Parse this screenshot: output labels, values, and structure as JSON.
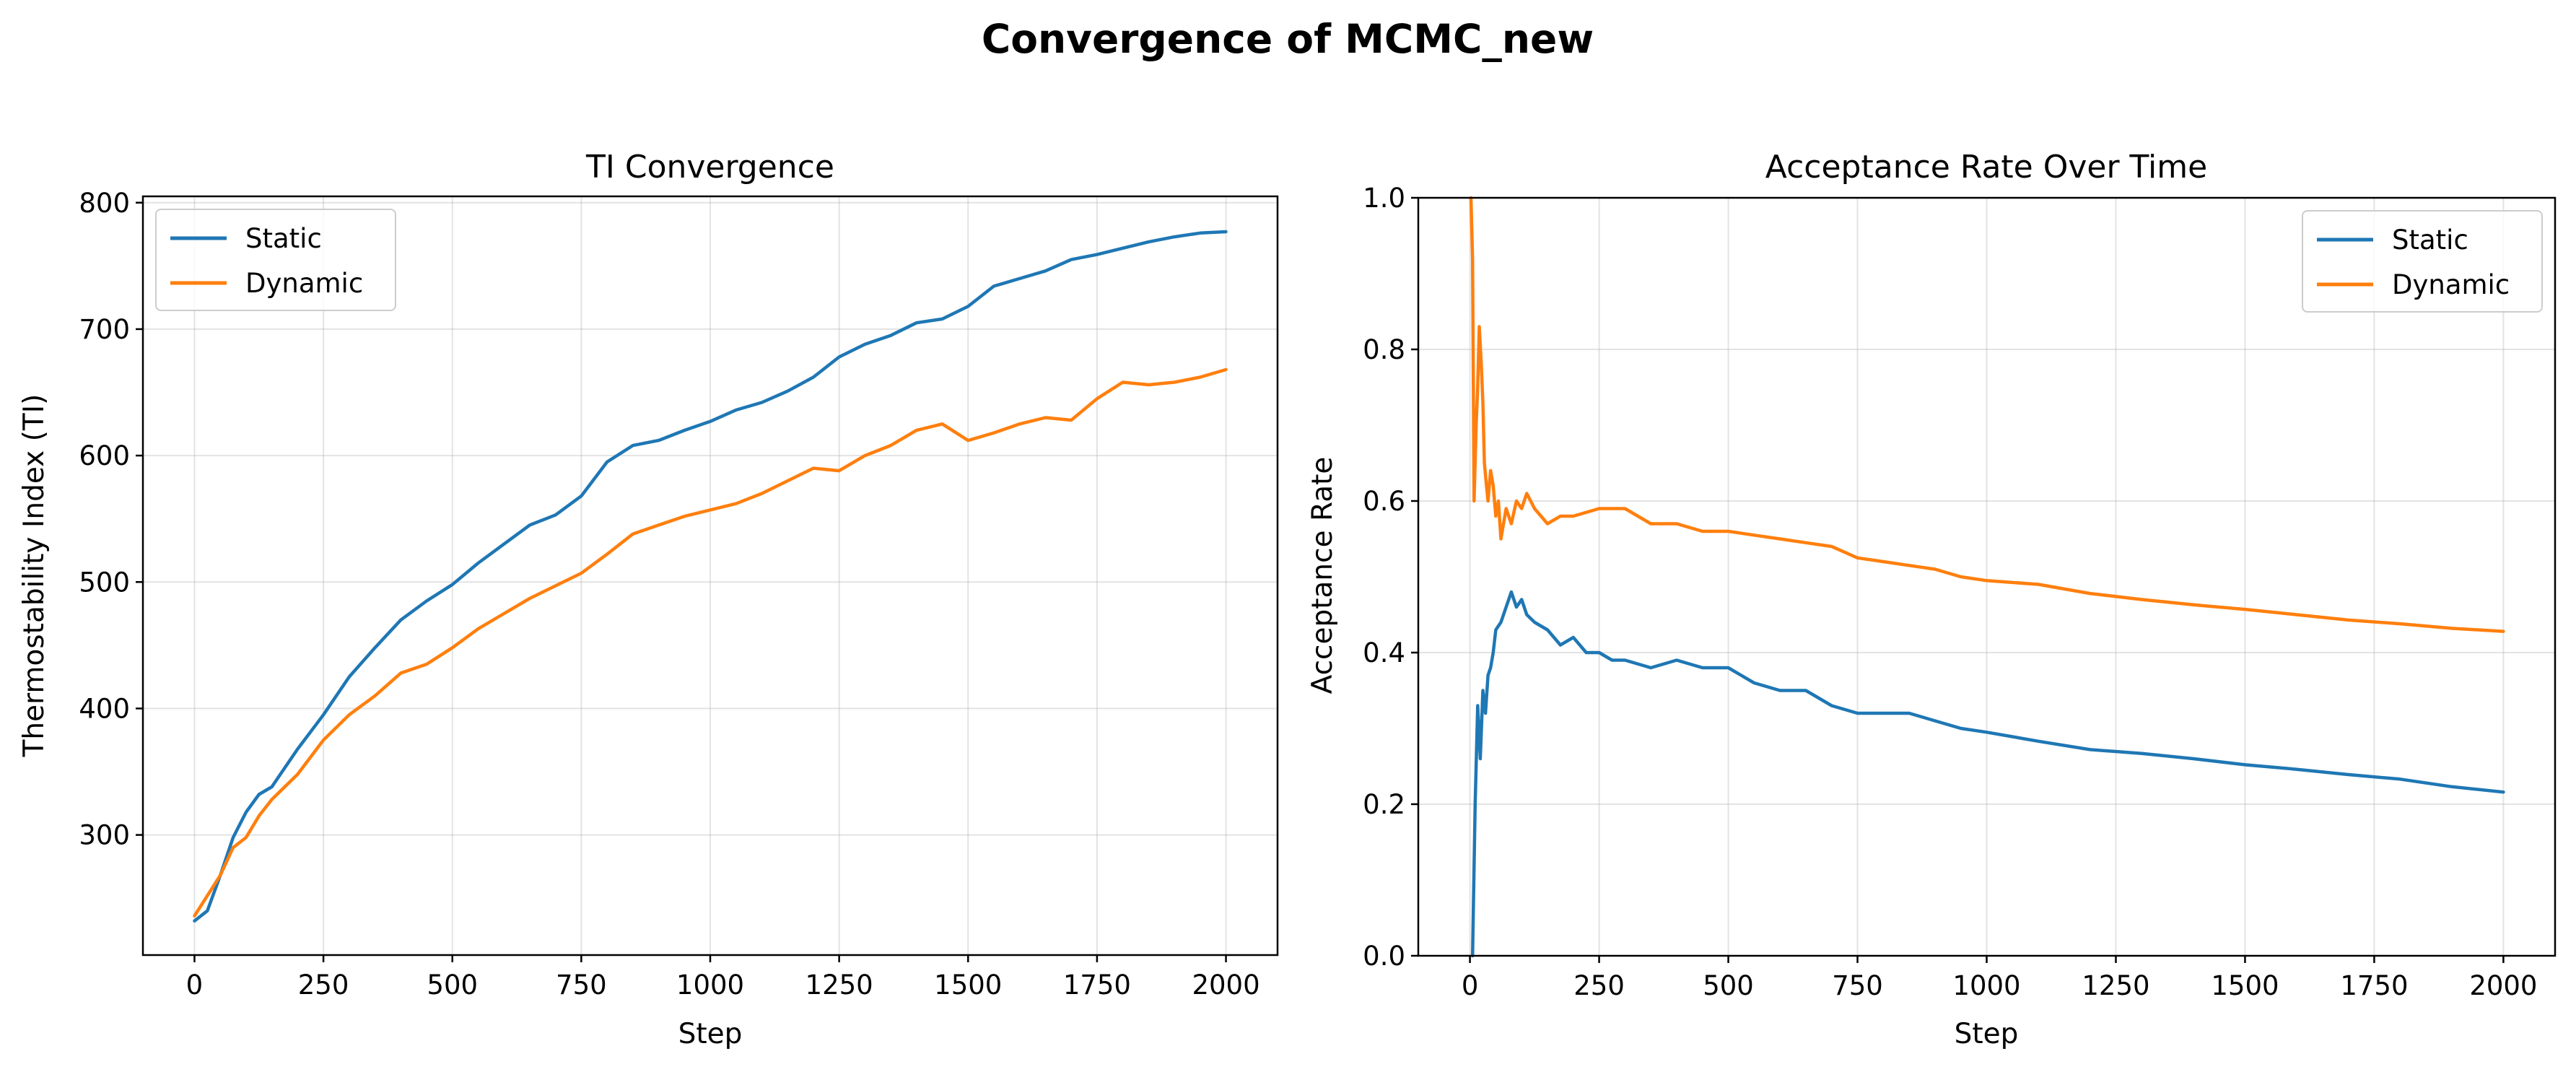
{
  "figure": {
    "title": "Convergence of MCMC_new"
  },
  "colors": {
    "static": "#1f77b4",
    "dynamic": "#ff7f0e"
  },
  "chart_data": [
    {
      "type": "line",
      "title": "TI Convergence",
      "xlabel": "Step",
      "ylabel": "Thermostability Index (TI)",
      "xlim": [
        -100,
        2100
      ],
      "ylim": [
        205,
        805
      ],
      "xticks": [
        0,
        250,
        500,
        750,
        1000,
        1250,
        1500,
        1750,
        2000
      ],
      "yticks": [
        300,
        400,
        500,
        600,
        700,
        800
      ],
      "grid": true,
      "legend": "top-left",
      "series": [
        {
          "name": "Static",
          "color": "#1f77b4",
          "x": [
            0,
            25,
            50,
            75,
            100,
            125,
            150,
            200,
            250,
            300,
            350,
            400,
            450,
            500,
            550,
            600,
            650,
            700,
            750,
            800,
            850,
            900,
            950,
            1000,
            1050,
            1100,
            1150,
            1200,
            1250,
            1300,
            1350,
            1400,
            1450,
            1500,
            1550,
            1600,
            1650,
            1700,
            1750,
            1800,
            1850,
            1900,
            1950,
            2000
          ],
          "y": [
            232,
            240,
            268,
            298,
            318,
            332,
            338,
            368,
            395,
            425,
            448,
            470,
            485,
            498,
            515,
            530,
            545,
            553,
            568,
            595,
            608,
            612,
            620,
            627,
            636,
            642,
            651,
            662,
            678,
            688,
            695,
            705,
            708,
            718,
            734,
            740,
            746,
            755,
            759,
            764,
            769,
            773,
            776,
            777
          ]
        },
        {
          "name": "Dynamic",
          "color": "#ff7f0e",
          "x": [
            0,
            25,
            50,
            75,
            100,
            125,
            150,
            200,
            250,
            300,
            350,
            400,
            450,
            500,
            550,
            600,
            650,
            700,
            750,
            800,
            850,
            900,
            950,
            1000,
            1050,
            1100,
            1150,
            1200,
            1250,
            1300,
            1350,
            1400,
            1450,
            1500,
            1550,
            1600,
            1650,
            1700,
            1750,
            1800,
            1850,
            1900,
            1950,
            2000
          ],
          "y": [
            236,
            252,
            268,
            290,
            298,
            315,
            328,
            348,
            375,
            395,
            410,
            428,
            435,
            448,
            463,
            475,
            487,
            497,
            507,
            522,
            538,
            545,
            552,
            557,
            562,
            570,
            580,
            590,
            588,
            600,
            608,
            620,
            625,
            612,
            618,
            625,
            630,
            628,
            645,
            658,
            656,
            658,
            662,
            668
          ]
        }
      ]
    },
    {
      "type": "line",
      "title": "Acceptance Rate Over Time",
      "xlabel": "Step",
      "ylabel": "Acceptance Rate",
      "xlim": [
        -100,
        2100
      ],
      "ylim": [
        0.0,
        1.0
      ],
      "xticks": [
        0,
        250,
        500,
        750,
        1000,
        1250,
        1500,
        1750,
        2000
      ],
      "yticks": [
        0.0,
        0.2,
        0.4,
        0.6,
        0.8,
        1.0
      ],
      "grid": true,
      "legend": "top-right",
      "series": [
        {
          "name": "Static",
          "color": "#1f77b4",
          "x": [
            5,
            10,
            15,
            20,
            25,
            30,
            35,
            40,
            45,
            50,
            60,
            70,
            80,
            90,
            100,
            110,
            125,
            150,
            175,
            200,
            225,
            250,
            275,
            300,
            350,
            400,
            450,
            500,
            550,
            600,
            650,
            700,
            750,
            800,
            850,
            900,
            950,
            1000,
            1100,
            1200,
            1300,
            1400,
            1500,
            1600,
            1700,
            1800,
            1900,
            2000
          ],
          "y": [
            0.0,
            0.2,
            0.33,
            0.26,
            0.35,
            0.32,
            0.37,
            0.38,
            0.4,
            0.43,
            0.44,
            0.46,
            0.48,
            0.46,
            0.47,
            0.45,
            0.44,
            0.43,
            0.41,
            0.42,
            0.4,
            0.4,
            0.39,
            0.39,
            0.38,
            0.39,
            0.38,
            0.38,
            0.36,
            0.35,
            0.35,
            0.33,
            0.32,
            0.32,
            0.32,
            0.31,
            0.3,
            0.295,
            0.283,
            0.272,
            0.267,
            0.26,
            0.252,
            0.246,
            0.239,
            0.233,
            0.223,
            0.216
          ]
        },
        {
          "name": "Dynamic",
          "color": "#ff7f0e",
          "x": [
            2,
            5,
            8,
            12,
            15,
            18,
            22,
            25,
            28,
            32,
            35,
            40,
            45,
            50,
            55,
            60,
            65,
            70,
            80,
            90,
            100,
            110,
            125,
            150,
            175,
            200,
            250,
            300,
            350,
            400,
            450,
            500,
            550,
            600,
            650,
            700,
            750,
            800,
            850,
            900,
            950,
            1000,
            1100,
            1200,
            1300,
            1400,
            1500,
            1600,
            1700,
            1800,
            1900,
            2000
          ],
          "y": [
            1.0,
            0.92,
            0.6,
            0.7,
            0.75,
            0.83,
            0.78,
            0.73,
            0.65,
            0.62,
            0.6,
            0.64,
            0.62,
            0.58,
            0.6,
            0.55,
            0.57,
            0.59,
            0.57,
            0.6,
            0.59,
            0.61,
            0.59,
            0.57,
            0.58,
            0.58,
            0.59,
            0.59,
            0.57,
            0.57,
            0.56,
            0.56,
            0.555,
            0.55,
            0.545,
            0.54,
            0.525,
            0.52,
            0.515,
            0.51,
            0.5,
            0.495,
            0.49,
            0.478,
            0.47,
            0.463,
            0.457,
            0.45,
            0.443,
            0.438,
            0.432,
            0.428
          ]
        }
      ]
    }
  ]
}
